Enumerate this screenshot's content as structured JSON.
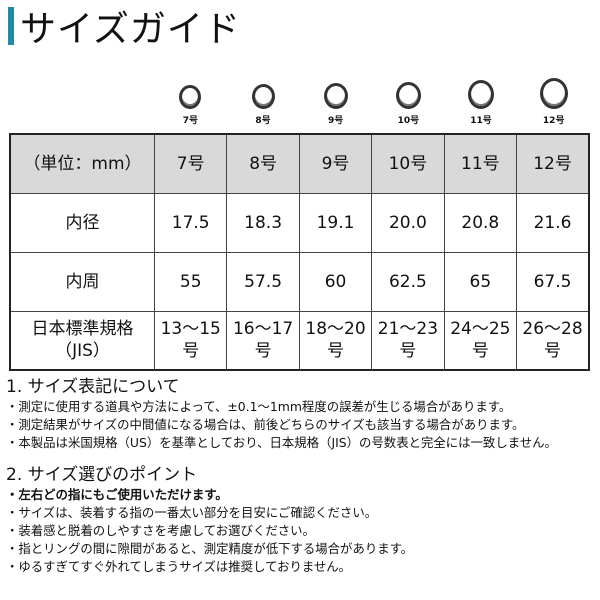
{
  "title": "サイズガイド",
  "accent_color": "#1f8aa0",
  "rings": [
    "7号",
    "8号",
    "9号",
    "10号",
    "11号",
    "12号"
  ],
  "table": {
    "header": [
      "（単位：mm）",
      "7号",
      "8号",
      "9号",
      "10号",
      "11号",
      "12号"
    ],
    "rows": [
      {
        "label": "内径",
        "values": [
          "17.5",
          "18.3",
          "19.1",
          "20.0",
          "20.8",
          "21.6"
        ]
      },
      {
        "label": "内周",
        "values": [
          "55",
          "57.5",
          "60",
          "62.5",
          "65",
          "67.5"
        ]
      },
      {
        "label": "日本標準規格（JIS）",
        "values": [
          "13〜15号",
          "16〜17号",
          "18〜20号",
          "21〜23号",
          "24〜25号",
          "26〜28号"
        ]
      }
    ]
  },
  "section1": {
    "heading": "1. サイズ表記について",
    "items": [
      "・測定に使用する道具や方法によって、±0.1〜1mm程度の誤差が生じる場合があります。",
      "・測定結果がサイズの中間値になる場合は、前後どちらのサイズも該当する場合があります。",
      "・本製品は米国規格（US）を基準としており、日本規格（JIS）の号数表と完全には一致しません。"
    ]
  },
  "section2": {
    "heading": "2. サイズ選びのポイント",
    "bold_item": "・左右どの指にもご使用いただけます。",
    "items": [
      "・サイズは、装着する指の一番太い部分を目安にご確認ください。",
      "・装着感と脱着のしやすさを考慮してお選びください。",
      "・指とリングの間に隙間があると、測定精度が低下する場合があります。",
      "・ゆるすぎてすぐ外れてしまうサイズは推奨しておりません。"
    ]
  }
}
